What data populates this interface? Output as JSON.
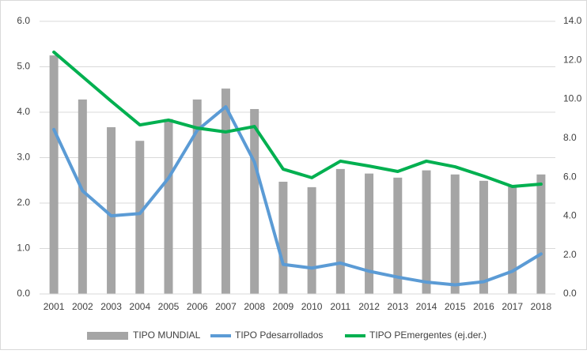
{
  "chart_data": {
    "type": "bar-line",
    "categories": [
      "2001",
      "2002",
      "2003",
      "2004",
      "2005",
      "2006",
      "2007",
      "2008",
      "2009",
      "2010",
      "2011",
      "2012",
      "2013",
      "2014",
      "2015",
      "2016",
      "2017",
      "2018"
    ],
    "series": [
      {
        "name": "TIPO MUNDIAL",
        "type": "bar",
        "color": "#a5a5a5",
        "values": [
          5.25,
          4.28,
          3.67,
          3.37,
          3.85,
          4.28,
          4.52,
          4.07,
          2.47,
          2.35,
          2.75,
          2.65,
          2.56,
          2.72,
          2.63,
          2.49,
          2.4,
          2.63
        ]
      },
      {
        "name": "TIPO Pdesarrollados",
        "type": "line",
        "color": "#5b9bd5",
        "values": [
          3.62,
          2.27,
          1.72,
          1.77,
          2.55,
          3.6,
          4.12,
          2.9,
          0.65,
          0.57,
          0.68,
          0.5,
          0.37,
          0.26,
          0.2,
          0.27,
          0.5,
          0.88
        ]
      },
      {
        "name": "TIPO PEmergentes (ej.der.)",
        "type": "line",
        "axis": "y2",
        "color": "#00b050",
        "values": [
          12.42,
          11.16,
          9.9,
          8.68,
          8.93,
          8.52,
          8.32,
          8.6,
          6.41,
          5.97,
          6.82,
          6.57,
          6.29,
          6.82,
          6.53,
          6.05,
          5.52,
          5.64
        ]
      }
    ],
    "ylim": [
      0,
      6
    ],
    "yticks": [
      {
        "value": 0,
        "label": "0.0"
      },
      {
        "value": 1,
        "label": "1.0"
      },
      {
        "value": 2,
        "label": "2.0"
      },
      {
        "value": 3,
        "label": "3.0"
      },
      {
        "value": 4,
        "label": "4.0"
      },
      {
        "value": 5,
        "label": "5.0"
      },
      {
        "value": 6,
        "label": "6.0"
      }
    ],
    "y2lim": [
      0,
      14
    ],
    "y2ticks": [
      {
        "value": 0,
        "label": "0.0"
      },
      {
        "value": 2,
        "label": "2.0"
      },
      {
        "value": 4,
        "label": "4.0"
      },
      {
        "value": 6,
        "label": "6.0"
      },
      {
        "value": 8,
        "label": "8.0"
      },
      {
        "value": 10,
        "label": "10.0"
      },
      {
        "value": 12,
        "label": "12.0"
      },
      {
        "value": 14,
        "label": "14.0"
      }
    ],
    "grid": true,
    "legend": "bottom"
  }
}
